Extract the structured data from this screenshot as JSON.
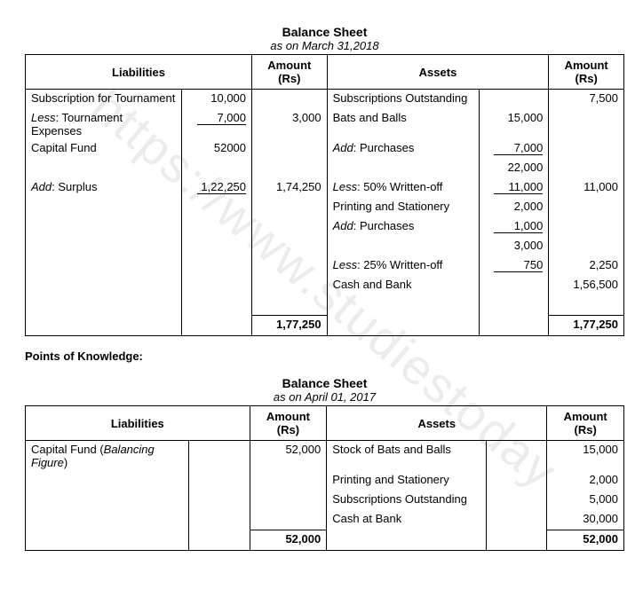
{
  "watermark": "https://www.studiestoday",
  "sheet1": {
    "title": "Balance Sheet",
    "date": "as on March 31,2018",
    "headers": {
      "liabilities": "Liabilities",
      "amount": "Amount (Rs)",
      "assets": "Assets"
    },
    "liab": {
      "r1": {
        "label": "Subscription for Tournament",
        "sub": "10,000"
      },
      "r2": {
        "label": "Less: Tournament Expenses",
        "sub": "7,000",
        "amt": "3,000"
      },
      "r3": {
        "label": "Capital Fund",
        "sub": "52000"
      },
      "r4": {
        "label": "Add: Surplus",
        "sub": "1,22,250",
        "amt": "1,74,250"
      }
    },
    "assets": {
      "r1": {
        "label": "Subscriptions Outstanding",
        "amt": "7,500"
      },
      "r2": {
        "label": "Bats and Balls",
        "sub": "15,000"
      },
      "r3": {
        "label": "Add: Purchases",
        "sub": "7,000"
      },
      "r4": {
        "sub": "22,000"
      },
      "r5": {
        "label": "Less: 50% Written-off",
        "sub": "11,000",
        "amt": "11,000"
      },
      "r6": {
        "label": "Printing and Stationery",
        "sub": "2,000"
      },
      "r7": {
        "label": "Add: Purchases",
        "sub": "1,000"
      },
      "r8": {
        "sub": "3,000"
      },
      "r9": {
        "label": "Less: 25% Written-off",
        "sub": "750",
        "amt": "2,250"
      },
      "r10": {
        "label": "Cash and Bank",
        "amt": "1,56,500"
      }
    },
    "total": "1,77,250"
  },
  "points_label": "Points of Knowledge:",
  "sheet2": {
    "title": "Balance Sheet",
    "date": "as on April 01, 2017",
    "headers": {
      "liabilities": "Liabilities",
      "amount": "Amount (Rs)",
      "assets": "Assets"
    },
    "liab": {
      "r1": {
        "label": "Capital Fund (Balancing Figure)",
        "amt": "52,000"
      }
    },
    "assets": {
      "r1": {
        "label": "Stock of Bats and Balls",
        "amt": "15,000"
      },
      "r2": {
        "label": "Printing and Stationery",
        "amt": "2,000"
      },
      "r3": {
        "label": "Subscriptions Outstanding",
        "amt": "5,000"
      },
      "r4": {
        "label": "Cash at Bank",
        "amt": "30,000"
      }
    },
    "total": "52,000"
  }
}
